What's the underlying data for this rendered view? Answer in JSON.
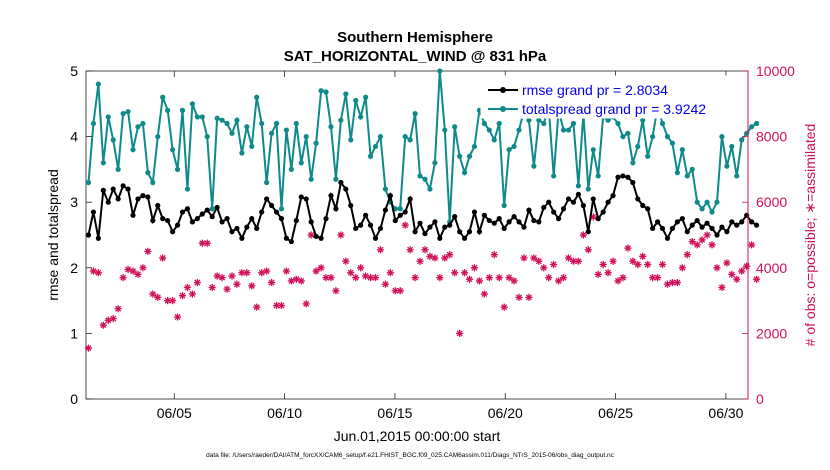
{
  "chart_data": {
    "type": "line",
    "title": "Southern Hemisphere",
    "subtitle": "SAT_HORIZONTAL_WIND @ 831 hPa",
    "xlabel": "Jun.01,2015 00:00:00 start",
    "ylabel_left": "rmse and totalspread",
    "ylabel_right": "# of obs: o=possible; ∗=assimilated",
    "footnote": "data file: /Users/raeder/DAI/ATM_forcXX/CAM6_setup/f.e21.FHIST_BGC.f09_025.CAM6assim.011/Diags_NTrS_2015-06/obs_diag_output.nc",
    "xlim": [
      1,
      31
    ],
    "ylim_left": [
      0,
      5
    ],
    "ylim_right": [
      0,
      10000
    ],
    "x_tick_labels": [
      "06/05",
      "06/10",
      "06/15",
      "06/20",
      "06/25",
      "06/30"
    ],
    "x_tick_values": [
      5,
      10,
      15,
      20,
      25,
      30
    ],
    "y_left_ticks": [
      "0",
      "1",
      "2",
      "3",
      "4",
      "5"
    ],
    "y_right_ticks": [
      "0",
      "2000",
      "4000",
      "6000",
      "8000",
      "10000"
    ],
    "colors": {
      "rmse": "#000000",
      "spread": "#0f8a8a",
      "obs": "#d0105a",
      "legend_text": "#0000ee"
    },
    "series": [
      {
        "name": "rmse grand pr = 2.8034",
        "axis": "left",
        "values": [
          2.5,
          2.85,
          2.45,
          3.18,
          3.0,
          3.2,
          3.05,
          3.25,
          3.2,
          2.8,
          3.05,
          3.1,
          3.08,
          2.72,
          2.95,
          2.75,
          2.72,
          2.55,
          2.65,
          2.85,
          2.9,
          2.7,
          2.75,
          2.82,
          2.88,
          2.78,
          2.92,
          2.7,
          2.75,
          2.55,
          2.6,
          2.45,
          2.62,
          2.75,
          2.6,
          2.85,
          3.05,
          2.95,
          2.85,
          2.75,
          2.45,
          2.4,
          2.72,
          3.08,
          3.05,
          2.7,
          2.48,
          2.45,
          2.75,
          3.1,
          2.9,
          3.3,
          3.2,
          2.95,
          2.6,
          2.65,
          2.8,
          2.65,
          2.45,
          2.6,
          2.88,
          3.1,
          2.72,
          2.8,
          2.85,
          3.05,
          2.55,
          2.68,
          2.52,
          2.62,
          2.7,
          2.45,
          2.62,
          2.65,
          2.78,
          2.55,
          2.45,
          2.55,
          2.85,
          2.55,
          2.8,
          2.72,
          2.68,
          2.75,
          2.6,
          2.7,
          2.78,
          2.7,
          2.62,
          2.88,
          2.72,
          2.7,
          2.92,
          3.0,
          2.85,
          2.75,
          2.9,
          3.05,
          3.0,
          3.12,
          2.95,
          2.55,
          3.05,
          2.75,
          2.85,
          3.0,
          3.1,
          3.38,
          3.4,
          3.38,
          3.3,
          3.05,
          2.95,
          2.9,
          2.6,
          2.7,
          2.6,
          2.45,
          2.6,
          2.7,
          2.75,
          2.55,
          2.65,
          2.72,
          2.62,
          2.68,
          2.6,
          2.5,
          2.62,
          2.55,
          2.7,
          2.65,
          2.7,
          2.8,
          2.7,
          2.65
        ]
      },
      {
        "name": "totalspread grand pr = 3.9242",
        "axis": "left",
        "values": [
          3.3,
          4.2,
          4.8,
          3.6,
          4.3,
          3.95,
          3.5,
          4.35,
          4.38,
          3.8,
          4.15,
          4.2,
          3.45,
          3.3,
          4.0,
          4.6,
          4.4,
          3.8,
          3.5,
          4.4,
          3.2,
          4.5,
          4.3,
          4.3,
          4.0,
          2.9,
          4.28,
          4.25,
          4.2,
          4.05,
          4.25,
          3.75,
          4.15,
          3.85,
          4.6,
          4.2,
          3.3,
          4.05,
          4.2,
          2.9,
          4.1,
          3.5,
          4.2,
          3.6,
          4.0,
          3.35,
          3.9,
          4.7,
          4.68,
          4.15,
          3.35,
          4.25,
          4.65,
          3.95,
          4.55,
          4.3,
          4.6,
          3.7,
          3.85,
          4.0,
          3.2,
          3.0,
          2.9,
          2.9,
          4.0,
          3.95,
          4.35,
          3.4,
          3.35,
          3.2,
          3.6,
          5.0,
          4.1,
          2.7,
          4.15,
          3.7,
          3.45,
          3.7,
          3.85,
          4.4,
          4.2,
          4.1,
          3.95,
          4.2,
          2.95,
          3.8,
          3.85,
          4.1,
          4.4,
          4.25,
          3.55,
          4.25,
          4.2,
          4.45,
          3.4,
          4.4,
          4.1,
          4.1,
          4.2,
          3.25,
          4.35,
          3.2,
          3.8,
          3.4,
          4.3,
          4.25,
          4.3,
          4.2,
          4.0,
          4.05,
          3.6,
          3.85,
          4.25,
          3.7,
          4.0,
          4.45,
          4.2,
          4.0,
          3.9,
          3.45,
          3.8,
          3.4,
          3.5,
          3.0,
          2.9,
          3.0,
          2.85,
          3.0,
          4.0,
          3.55,
          3.85,
          3.4,
          3.95,
          4.05,
          4.15,
          4.2
        ]
      },
      {
        "name": "assimilated",
        "axis": "right",
        "values": [
          1550,
          3900,
          3850,
          2250,
          2400,
          2450,
          2750,
          3700,
          3950,
          3900,
          3800,
          4000,
          4500,
          3200,
          3100,
          4300,
          3000,
          3000,
          2500,
          3150,
          3400,
          3200,
          3550,
          4750,
          4750,
          3400,
          3750,
          3700,
          3350,
          3750,
          3500,
          3850,
          3850,
          3450,
          2800,
          3850,
          3900,
          3550,
          2850,
          2850,
          3900,
          3600,
          3650,
          3600,
          2900,
          5000,
          3900,
          4000,
          3700,
          3700,
          3300,
          5000,
          4200,
          3850,
          3700,
          4000,
          3750,
          3700,
          3700,
          4550,
          3500,
          3850,
          3300,
          3300,
          5300,
          4550,
          3700,
          4200,
          4550,
          4350,
          4300,
          3700,
          4300,
          4400,
          3850,
          2000,
          3850,
          3650,
          4000,
          3600,
          3200,
          3700,
          4400,
          3700,
          2800,
          3700,
          3600,
          3100,
          4300,
          3100,
          4300,
          4200,
          4000,
          3700,
          4100,
          3600,
          3700,
          4300,
          4200,
          4200,
          5000,
          4550,
          5550,
          3800,
          4100,
          3850,
          4200,
          3600,
          3700,
          4600,
          4200,
          4100,
          4350,
          4100,
          3700,
          3700,
          4100,
          3500,
          3550,
          3550,
          4000,
          4400,
          4800,
          4700,
          4850,
          5000,
          4700,
          4000,
          3400,
          4150,
          3800,
          3650,
          3900,
          4050,
          4700,
          3650
        ]
      }
    ]
  }
}
